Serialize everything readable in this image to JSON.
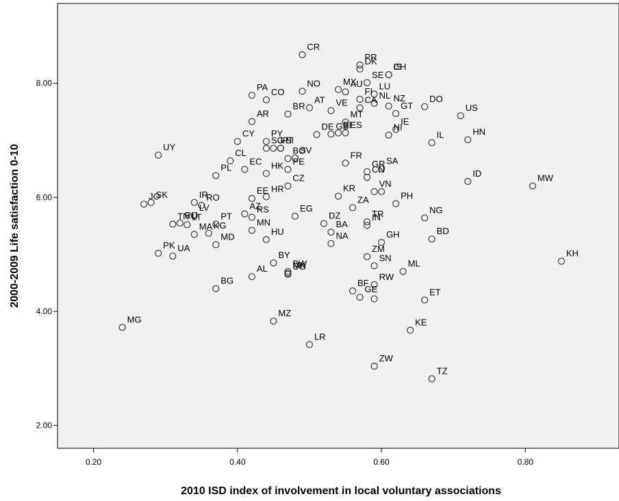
{
  "chart_data": {
    "type": "scatter",
    "title": "",
    "xlabel": "2010 ISD index of involvement in local voluntary associations",
    "ylabel": "2000-2009 Life satisfaction 0-10",
    "xlim": [
      0.15,
      0.93
    ],
    "ylim": [
      1.6,
      9.4
    ],
    "x_ticks": [
      0.2,
      0.4,
      0.6,
      0.8
    ],
    "x_tick_labels": [
      "0.20",
      "0.40",
      "0.60",
      "0.80"
    ],
    "y_ticks": [
      2,
      4,
      6,
      8
    ],
    "y_tick_labels": [
      "2.00",
      "4.00",
      "6.00",
      "8.00"
    ],
    "grid": false,
    "legend": "none",
    "colors": {
      "plot_background": "#f0f0f0",
      "marker_stroke": "#3a3a3a",
      "text": "#000000"
    },
    "points": [
      {
        "label": "CR",
        "x": 0.49,
        "y": 8.5
      },
      {
        "label": "DK",
        "x": 0.57,
        "y": 8.25
      },
      {
        "label": "PR",
        "x": 0.57,
        "y": 8.32
      },
      {
        "label": "IS",
        "x": 0.61,
        "y": 8.15
      },
      {
        "label": "CH",
        "x": 0.61,
        "y": 8.15
      },
      {
        "label": "SE",
        "x": 0.58,
        "y": 8.01
      },
      {
        "label": "MX",
        "x": 0.54,
        "y": 7.89
      },
      {
        "label": "AU",
        "x": 0.55,
        "y": 7.85
      },
      {
        "label": "FI",
        "x": 0.57,
        "y": 7.72
      },
      {
        "label": "NO",
        "x": 0.49,
        "y": 7.86
      },
      {
        "label": "PA",
        "x": 0.42,
        "y": 7.79
      },
      {
        "label": "CO",
        "x": 0.44,
        "y": 7.71
      },
      {
        "label": "AT",
        "x": 0.5,
        "y": 7.57
      },
      {
        "label": "LU",
        "x": 0.59,
        "y": 7.81
      },
      {
        "label": "NL",
        "x": 0.59,
        "y": 7.65
      },
      {
        "label": "VE",
        "x": 0.53,
        "y": 7.52
      },
      {
        "label": "DO",
        "x": 0.66,
        "y": 7.59
      },
      {
        "label": "NZ",
        "x": 0.61,
        "y": 7.6
      },
      {
        "label": "US",
        "x": 0.71,
        "y": 7.43
      },
      {
        "label": "AR",
        "x": 0.42,
        "y": 7.33
      },
      {
        "label": "CA",
        "x": 0.57,
        "y": 7.57
      },
      {
        "label": "GT",
        "x": 0.62,
        "y": 7.47
      },
      {
        "label": "BR",
        "x": 0.47,
        "y": 7.46
      },
      {
        "label": "MT",
        "x": 0.55,
        "y": 7.32
      },
      {
        "label": "ES",
        "x": 0.55,
        "y": 7.13
      },
      {
        "label": "BE",
        "x": 0.54,
        "y": 7.13
      },
      {
        "label": "IE",
        "x": 0.62,
        "y": 7.19
      },
      {
        "label": "HN",
        "x": 0.72,
        "y": 7.01
      },
      {
        "label": "CY",
        "x": 0.4,
        "y": 6.98
      },
      {
        "label": "IL",
        "x": 0.67,
        "y": 6.96
      },
      {
        "label": "PY",
        "x": 0.44,
        "y": 6.98
      },
      {
        "label": "GB",
        "x": 0.53,
        "y": 7.11
      },
      {
        "label": "UY",
        "x": 0.29,
        "y": 6.74
      },
      {
        "label": "SI",
        "x": 0.46,
        "y": 6.86
      },
      {
        "label": "IT",
        "x": 0.46,
        "y": 6.86
      },
      {
        "label": "NI",
        "x": 0.61,
        "y": 7.09
      },
      {
        "label": "CL",
        "x": 0.39,
        "y": 6.64
      },
      {
        "label": "DE",
        "x": 0.51,
        "y": 7.1
      },
      {
        "label": "FR",
        "x": 0.55,
        "y": 6.6
      },
      {
        "label": "JP",
        "x": 0.45,
        "y": 6.86
      },
      {
        "label": "SG",
        "x": 0.44,
        "y": 6.86
      },
      {
        "label": "SV",
        "x": 0.48,
        "y": 6.69
      },
      {
        "label": "BO",
        "x": 0.47,
        "y": 6.68
      },
      {
        "label": "SA",
        "x": 0.6,
        "y": 6.5
      },
      {
        "label": "GR",
        "x": 0.58,
        "y": 6.45
      },
      {
        "label": "ID",
        "x": 0.72,
        "y": 6.28
      },
      {
        "label": "MW",
        "x": 0.81,
        "y": 6.2
      },
      {
        "label": "PE",
        "x": 0.47,
        "y": 6.49
      },
      {
        "label": "HK",
        "x": 0.44,
        "y": 6.42
      },
      {
        "label": "CZ",
        "x": 0.47,
        "y": 6.2
      },
      {
        "label": "CN",
        "x": 0.58,
        "y": 6.35
      },
      {
        "label": "EC",
        "x": 0.41,
        "y": 6.49
      },
      {
        "label": "JO",
        "x": 0.27,
        "y": 5.88
      },
      {
        "label": "SK",
        "x": 0.28,
        "y": 5.91
      },
      {
        "label": "IR",
        "x": 0.34,
        "y": 5.91
      },
      {
        "label": "PL",
        "x": 0.37,
        "y": 6.38
      },
      {
        "label": "KR",
        "x": 0.54,
        "y": 6.02
      },
      {
        "label": "VN",
        "x": 0.59,
        "y": 6.1
      },
      {
        "label": "EE",
        "x": 0.42,
        "y": 5.98
      },
      {
        "label": "PH",
        "x": 0.62,
        "y": 5.89
      },
      {
        "label": "RO",
        "x": 0.35,
        "y": 5.86
      },
      {
        "label": "HR",
        "x": 0.44,
        "y": 6.01
      },
      {
        "label": "EG",
        "x": 0.48,
        "y": 5.67
      },
      {
        "label": "ZA",
        "x": 0.56,
        "y": 5.82
      },
      {
        "label": "TR",
        "x": 0.58,
        "y": 5.57
      },
      {
        "label": "NG",
        "x": 0.66,
        "y": 5.64
      },
      {
        "label": "TN",
        "x": 0.31,
        "y": 5.53
      },
      {
        "label": "RU",
        "x": 0.32,
        "y": 5.55
      },
      {
        "label": "LV",
        "x": 0.34,
        "y": 5.68
      },
      {
        "label": "PT",
        "x": 0.37,
        "y": 5.53
      },
      {
        "label": "RS",
        "x": 0.42,
        "y": 5.65
      },
      {
        "label": "DZ",
        "x": 0.52,
        "y": 5.54
      },
      {
        "label": "MN",
        "x": 0.42,
        "y": 5.42
      },
      {
        "label": "BD",
        "x": 0.67,
        "y": 5.27
      },
      {
        "label": "GH",
        "x": 0.6,
        "y": 5.21
      },
      {
        "label": "LT",
        "x": 0.33,
        "y": 5.52
      },
      {
        "label": "AZ",
        "x": 0.41,
        "y": 5.71
      },
      {
        "label": "BA",
        "x": 0.53,
        "y": 5.39
      },
      {
        "label": "IN",
        "x": 0.58,
        "y": 5.51
      },
      {
        "label": "MA",
        "x": 0.34,
        "y": 5.35
      },
      {
        "label": "KG",
        "x": 0.36,
        "y": 5.37
      },
      {
        "label": "HU",
        "x": 0.44,
        "y": 5.26
      },
      {
        "label": "PK",
        "x": 0.29,
        "y": 5.02
      },
      {
        "label": "NA",
        "x": 0.53,
        "y": 5.19
      },
      {
        "label": "MD",
        "x": 0.37,
        "y": 5.17
      },
      {
        "label": "ZM",
        "x": 0.58,
        "y": 4.96
      },
      {
        "label": "ML",
        "x": 0.63,
        "y": 4.7
      },
      {
        "label": "KH",
        "x": 0.85,
        "y": 4.88
      },
      {
        "label": "UA",
        "x": 0.31,
        "y": 4.97
      },
      {
        "label": "BY",
        "x": 0.45,
        "y": 4.85
      },
      {
        "label": "BW",
        "x": 0.47,
        "y": 4.7
      },
      {
        "label": "UG",
        "x": 0.47,
        "y": 4.65
      },
      {
        "label": "SN",
        "x": 0.59,
        "y": 4.8
      },
      {
        "label": "BG",
        "x": 0.37,
        "y": 4.4
      },
      {
        "label": "AL",
        "x": 0.42,
        "y": 4.61
      },
      {
        "label": "MK",
        "x": 0.47,
        "y": 4.67
      },
      {
        "label": "BF",
        "x": 0.56,
        "y": 4.36
      },
      {
        "label": "RW",
        "x": 0.59,
        "y": 4.47
      },
      {
        "label": "ET",
        "x": 0.66,
        "y": 4.2
      },
      {
        "label": "GE",
        "x": 0.57,
        "y": 4.25
      },
      {
        "label": "MG",
        "x": 0.24,
        "y": 3.72
      },
      {
        "label": "MZ",
        "x": 0.45,
        "y": 3.83
      },
      {
        "label": "KE",
        "x": 0.64,
        "y": 3.67
      },
      {
        "label": "LR",
        "x": 0.5,
        "y": 3.42
      },
      {
        "label": "ZW",
        "x": 0.59,
        "y": 3.04
      },
      {
        "label": "TZ",
        "x": 0.67,
        "y": 2.82
      }
    ],
    "unlabeled_points": [
      {
        "x": 0.59,
        "y": 4.22
      },
      {
        "x": 0.6,
        "y": 6.1
      }
    ]
  }
}
